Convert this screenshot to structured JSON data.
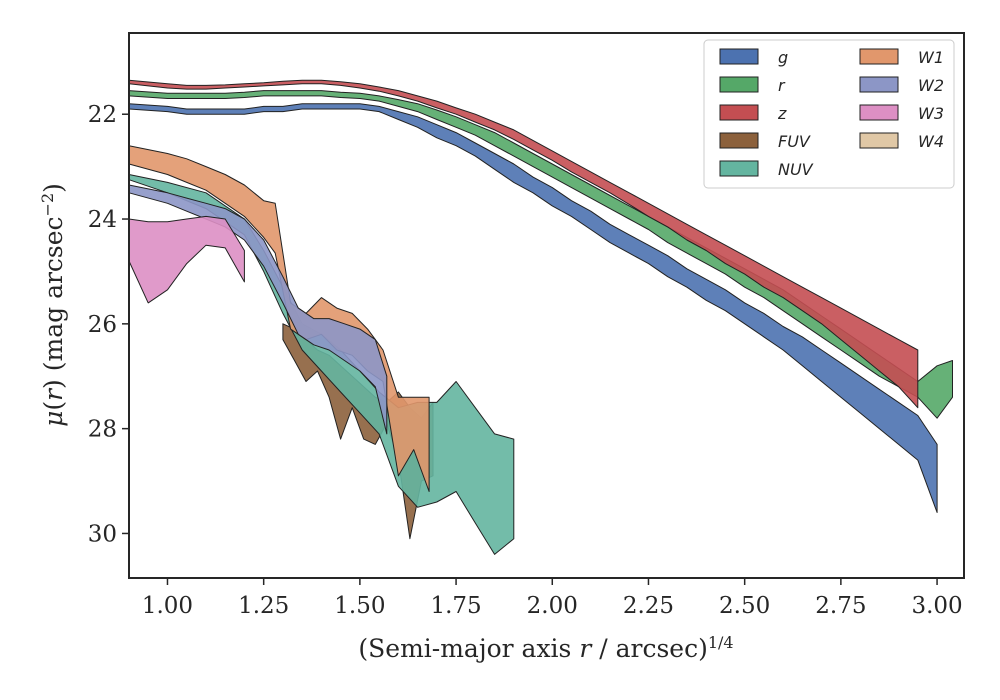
{
  "chart_data": {
    "type": "area",
    "xlabel": "(Semi-major axis r / arcsec)^1/4",
    "ylabel": "μ(r) (mag arcsec^−2)",
    "xlim": [
      0.9,
      3.07
    ],
    "ylim": [
      30.85,
      20.45
    ],
    "y_inverted": true,
    "xticks": [
      "1.00",
      "1.25",
      "1.50",
      "1.75",
      "2.00",
      "2.25",
      "2.50",
      "2.75",
      "3.00"
    ],
    "yticks": [
      "22",
      "24",
      "26",
      "28",
      "30"
    ],
    "grid": false,
    "legend_position": "top-right",
    "legend_columns": 2,
    "series": [
      {
        "name": "g",
        "color": "#4c72b0",
        "x": [
          0.9,
          1.0,
          1.05,
          1.1,
          1.15,
          1.2,
          1.25,
          1.3,
          1.35,
          1.4,
          1.45,
          1.5,
          1.55,
          1.6,
          1.65,
          1.7,
          1.75,
          1.8,
          1.85,
          1.9,
          1.95,
          2.0,
          2.05,
          2.1,
          2.15,
          2.2,
          2.25,
          2.3,
          2.35,
          2.4,
          2.45,
          2.5,
          2.55,
          2.6,
          2.65,
          2.7,
          2.75,
          2.8,
          2.85,
          2.9,
          2.95,
          3.0
        ],
        "lower": [
          21.8,
          21.85,
          21.9,
          21.9,
          21.9,
          21.9,
          21.85,
          21.85,
          21.8,
          21.8,
          21.8,
          21.8,
          21.85,
          21.95,
          22.05,
          22.2,
          22.35,
          22.55,
          22.75,
          22.95,
          23.2,
          23.4,
          23.65,
          23.85,
          24.1,
          24.3,
          24.5,
          24.7,
          24.95,
          25.15,
          25.35,
          25.6,
          25.8,
          26.05,
          26.25,
          26.5,
          26.75,
          27.0,
          27.25,
          27.5,
          27.75,
          28.3
        ],
        "upper": [
          21.9,
          21.95,
          22.0,
          22.0,
          22.0,
          22.0,
          21.95,
          21.95,
          21.9,
          21.9,
          21.9,
          21.9,
          21.95,
          22.1,
          22.25,
          22.45,
          22.6,
          22.8,
          23.05,
          23.3,
          23.5,
          23.75,
          23.95,
          24.2,
          24.45,
          24.65,
          24.85,
          25.1,
          25.3,
          25.55,
          25.75,
          26.0,
          26.25,
          26.5,
          26.8,
          27.1,
          27.4,
          27.7,
          28.0,
          28.3,
          28.6,
          29.6
        ]
      },
      {
        "name": "r",
        "color": "#55a868",
        "x": [
          0.9,
          1.0,
          1.05,
          1.1,
          1.15,
          1.2,
          1.25,
          1.3,
          1.35,
          1.4,
          1.45,
          1.5,
          1.55,
          1.6,
          1.65,
          1.7,
          1.75,
          1.8,
          1.85,
          1.9,
          1.95,
          2.0,
          2.05,
          2.1,
          2.15,
          2.2,
          2.25,
          2.3,
          2.35,
          2.4,
          2.45,
          2.5,
          2.55,
          2.6,
          2.65,
          2.7,
          2.75,
          2.8,
          2.85,
          2.9,
          2.95,
          3.0,
          3.04
        ],
        "lower": [
          21.55,
          21.6,
          21.6,
          21.6,
          21.6,
          21.58,
          21.55,
          21.55,
          21.55,
          21.55,
          21.58,
          21.6,
          21.65,
          21.72,
          21.8,
          21.92,
          22.05,
          22.2,
          22.35,
          22.55,
          22.75,
          22.95,
          23.15,
          23.35,
          23.55,
          23.75,
          23.95,
          24.15,
          24.35,
          24.55,
          24.75,
          24.95,
          25.15,
          25.35,
          25.6,
          25.85,
          26.1,
          26.35,
          26.6,
          26.85,
          27.1,
          26.8,
          26.7
        ],
        "upper": [
          21.65,
          21.7,
          21.7,
          21.7,
          21.7,
          21.68,
          21.65,
          21.65,
          21.65,
          21.65,
          21.68,
          21.7,
          21.75,
          21.85,
          21.95,
          22.1,
          22.25,
          22.4,
          22.6,
          22.8,
          23.0,
          23.2,
          23.4,
          23.6,
          23.8,
          24.0,
          24.2,
          24.45,
          24.65,
          24.85,
          25.05,
          25.3,
          25.5,
          25.75,
          26.0,
          26.25,
          26.5,
          26.75,
          27.0,
          27.2,
          27.4,
          27.8,
          27.4
        ]
      },
      {
        "name": "z",
        "color": "#c44e52",
        "x": [
          0.9,
          1.0,
          1.05,
          1.1,
          1.15,
          1.2,
          1.25,
          1.3,
          1.35,
          1.4,
          1.45,
          1.5,
          1.55,
          1.6,
          1.65,
          1.7,
          1.75,
          1.8,
          1.85,
          1.9,
          1.95,
          2.0,
          2.05,
          2.1,
          2.15,
          2.2,
          2.25,
          2.3,
          2.35,
          2.4,
          2.45,
          2.5,
          2.55,
          2.6,
          2.65,
          2.7,
          2.75,
          2.8,
          2.85,
          2.9,
          2.95
        ],
        "lower": [
          21.35,
          21.42,
          21.45,
          21.45,
          21.44,
          21.42,
          21.4,
          21.37,
          21.35,
          21.35,
          21.38,
          21.42,
          21.48,
          21.55,
          21.65,
          21.75,
          21.88,
          22.0,
          22.15,
          22.3,
          22.5,
          22.7,
          22.9,
          23.1,
          23.3,
          23.5,
          23.7,
          23.9,
          24.1,
          24.3,
          24.5,
          24.7,
          24.9,
          25.1,
          25.3,
          25.5,
          25.7,
          25.9,
          26.1,
          26.3,
          26.5
        ],
        "upper": [
          21.42,
          21.5,
          21.52,
          21.52,
          21.5,
          21.48,
          21.46,
          21.44,
          21.42,
          21.42,
          21.45,
          21.5,
          21.56,
          21.65,
          21.75,
          21.88,
          22.0,
          22.15,
          22.3,
          22.48,
          22.68,
          22.88,
          23.1,
          23.3,
          23.5,
          23.72,
          23.95,
          24.15,
          24.4,
          24.6,
          24.85,
          25.05,
          25.3,
          25.5,
          25.75,
          26.0,
          26.3,
          26.6,
          26.9,
          27.2,
          27.6
        ]
      },
      {
        "name": "FUV",
        "color": "#8c613c",
        "x": [
          1.3,
          1.33,
          1.36,
          1.39,
          1.42,
          1.45,
          1.48,
          1.51,
          1.54,
          1.57,
          1.6,
          1.63,
          1.66,
          1.69
        ],
        "lower": [
          26.0,
          26.1,
          26.3,
          26.5,
          26.6,
          26.8,
          27.0,
          27.2,
          27.4,
          27.5,
          27.3,
          27.6,
          27.8,
          27.5
        ],
        "upper": [
          26.3,
          26.7,
          27.1,
          26.9,
          27.4,
          28.2,
          27.6,
          28.2,
          28.3,
          27.9,
          28.6,
          30.1,
          29.0,
          28.9
        ]
      },
      {
        "name": "NUV",
        "color": "#64b5a0",
        "x": [
          0.9,
          1.0,
          1.1,
          1.2,
          1.25,
          1.3,
          1.35,
          1.4,
          1.45,
          1.5,
          1.55,
          1.6,
          1.65,
          1.7,
          1.75,
          1.8,
          1.85,
          1.9
        ],
        "lower": [
          23.15,
          23.3,
          23.5,
          24.0,
          24.6,
          25.3,
          26.0,
          26.2,
          26.5,
          26.9,
          27.3,
          27.6,
          27.5,
          27.5,
          27.1,
          27.6,
          28.1,
          28.2
        ],
        "upper": [
          23.25,
          23.5,
          23.8,
          24.3,
          25.0,
          25.8,
          26.5,
          26.9,
          27.3,
          27.7,
          28.1,
          29.1,
          29.5,
          29.4,
          29.2,
          29.8,
          30.4,
          30.1
        ]
      },
      {
        "name": "W1",
        "color": "#e1976c",
        "x": [
          0.9,
          1.0,
          1.05,
          1.1,
          1.15,
          1.2,
          1.25,
          1.28,
          1.32,
          1.36,
          1.4,
          1.44,
          1.48,
          1.52,
          1.56,
          1.6,
          1.64,
          1.68
        ],
        "lower": [
          22.6,
          22.75,
          22.85,
          23.0,
          23.15,
          23.35,
          23.65,
          23.7,
          25.6,
          25.8,
          25.5,
          25.7,
          25.8,
          26.1,
          26.5,
          27.4,
          27.4,
          27.4
        ],
        "upper": [
          22.95,
          23.15,
          23.3,
          23.45,
          23.7,
          23.95,
          24.35,
          24.65,
          26.1,
          26.3,
          26.2,
          26.5,
          26.6,
          26.9,
          27.1,
          28.9,
          28.4,
          29.2
        ]
      },
      {
        "name": "W2",
        "color": "#8c96c6",
        "x": [
          0.9,
          1.0,
          1.05,
          1.1,
          1.15,
          1.2,
          1.25,
          1.3,
          1.34,
          1.38,
          1.42,
          1.46,
          1.5,
          1.54,
          1.57
        ],
        "lower": [
          23.35,
          23.5,
          23.6,
          23.7,
          23.8,
          24.0,
          24.4,
          25.1,
          25.7,
          25.9,
          25.9,
          26.0,
          26.1,
          26.3,
          27.0
        ],
        "upper": [
          23.5,
          23.7,
          23.85,
          24.0,
          24.15,
          24.4,
          24.9,
          25.6,
          26.2,
          26.4,
          26.5,
          26.7,
          26.9,
          27.2,
          28.1
        ]
      },
      {
        "name": "W3",
        "color": "#dd8fc4",
        "x": [
          0.9,
          0.95,
          1.0,
          1.05,
          1.1,
          1.15,
          1.2
        ],
        "lower": [
          24.0,
          24.05,
          24.05,
          24.0,
          23.95,
          24.0,
          24.6
        ],
        "upper": [
          24.8,
          25.6,
          25.35,
          24.85,
          24.5,
          24.55,
          25.2
        ]
      },
      {
        "name": "W4",
        "color": "#e0c8a6",
        "x": [],
        "lower": [],
        "upper": []
      }
    ]
  }
}
